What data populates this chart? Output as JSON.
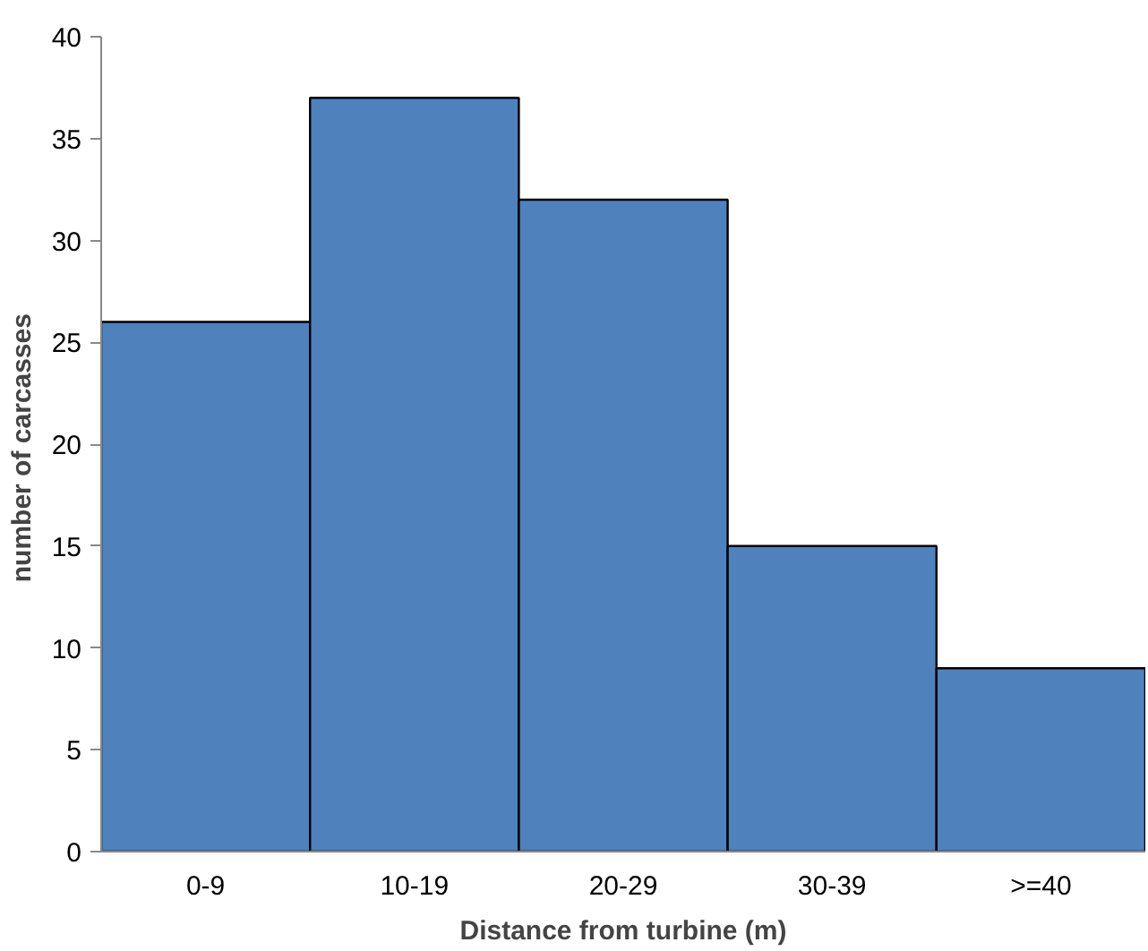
{
  "chart_data": {
    "type": "bar",
    "xlabel": "Distance from turbine (m)",
    "ylabel": "number of  carcasses",
    "categories": [
      "0-9",
      "10-19",
      "20-29",
      "30-39",
      ">=40"
    ],
    "values": [
      26,
      37,
      32,
      15,
      9
    ],
    "color": "#4f81bd",
    "ylim": [
      0,
      40
    ],
    "yticks": [
      0,
      5,
      10,
      15,
      20,
      25,
      30,
      35,
      40
    ],
    "grid": false
  }
}
